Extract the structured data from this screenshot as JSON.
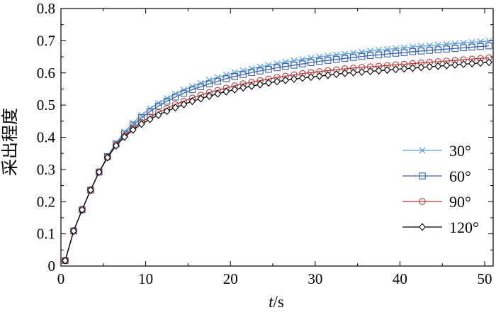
{
  "chart_data": {
    "type": "line",
    "title": "",
    "xlabel_italic": "t",
    "xlabel_unit": "/s",
    "ylabel": "采出程度",
    "xlim": [
      0,
      51
    ],
    "ylim": [
      0,
      0.8
    ],
    "xticks": [
      "0",
      "10",
      "20",
      "30",
      "40",
      "50"
    ],
    "yticks": [
      "0",
      "0.1",
      "0.2",
      "0.3",
      "0.4",
      "0.5",
      "0.6",
      "0.7",
      "0.8"
    ],
    "grid": false,
    "legend_position": "bottom-right",
    "x": [
      0.5,
      1.5,
      2.5,
      3.5,
      4.5,
      5.5,
      6.5,
      7.5,
      8.5,
      9.5,
      10.5,
      11.5,
      12.5,
      13.5,
      14.5,
      15.5,
      16.5,
      17.5,
      18.5,
      19.5,
      20.5,
      21.5,
      22.5,
      23.5,
      24.5,
      25.5,
      26.5,
      27.5,
      28.5,
      29.5,
      30.5,
      31.5,
      32.5,
      33.5,
      34.5,
      35.5,
      36.5,
      37.5,
      38.5,
      39.5,
      40.5,
      41.5,
      42.5,
      43.5,
      44.5,
      45.5,
      46.5,
      47.5,
      48.5,
      49.5,
      50.5
    ],
    "series": [
      {
        "name": "30°",
        "marker": "x",
        "color": "#5aa0d8",
        "values": [
          0.017,
          0.109,
          0.175,
          0.236,
          0.292,
          0.342,
          0.382,
          0.417,
          0.445,
          0.469,
          0.489,
          0.506,
          0.521,
          0.535,
          0.547,
          0.558,
          0.568,
          0.578,
          0.586,
          0.594,
          0.601,
          0.607,
          0.613,
          0.619,
          0.624,
          0.629,
          0.634,
          0.638,
          0.642,
          0.646,
          0.65,
          0.653,
          0.656,
          0.659,
          0.662,
          0.665,
          0.668,
          0.671,
          0.673,
          0.676,
          0.678,
          0.681,
          0.683,
          0.685,
          0.687,
          0.689,
          0.691,
          0.693,
          0.695,
          0.697,
          0.699
        ]
      },
      {
        "name": "60°",
        "marker": "square",
        "color": "#3a62a8",
        "values": [
          0.017,
          0.109,
          0.175,
          0.236,
          0.292,
          0.34,
          0.379,
          0.411,
          0.438,
          0.461,
          0.48,
          0.497,
          0.512,
          0.525,
          0.537,
          0.548,
          0.557,
          0.566,
          0.574,
          0.582,
          0.589,
          0.595,
          0.601,
          0.606,
          0.611,
          0.616,
          0.62,
          0.624,
          0.628,
          0.632,
          0.636,
          0.639,
          0.642,
          0.645,
          0.648,
          0.651,
          0.654,
          0.656,
          0.659,
          0.661,
          0.663,
          0.666,
          0.668,
          0.67,
          0.672,
          0.674,
          0.676,
          0.678,
          0.68,
          0.682,
          0.684
        ]
      },
      {
        "name": "90°",
        "marker": "circle",
        "color": "#b03a3a",
        "values": [
          0.017,
          0.109,
          0.175,
          0.236,
          0.292,
          0.338,
          0.376,
          0.405,
          0.428,
          0.447,
          0.463,
          0.477,
          0.49,
          0.502,
          0.512,
          0.522,
          0.531,
          0.539,
          0.546,
          0.553,
          0.56,
          0.566,
          0.571,
          0.576,
          0.581,
          0.586,
          0.59,
          0.594,
          0.598,
          0.601,
          0.604,
          0.607,
          0.61,
          0.613,
          0.615,
          0.617,
          0.619,
          0.621,
          0.623,
          0.625,
          0.627,
          0.629,
          0.631,
          0.633,
          0.635,
          0.637,
          0.639,
          0.641,
          0.643,
          0.645,
          0.647
        ]
      },
      {
        "name": "120°",
        "marker": "diamond",
        "color": "#000000",
        "values": [
          0.017,
          0.109,
          0.175,
          0.236,
          0.292,
          0.337,
          0.374,
          0.401,
          0.423,
          0.441,
          0.456,
          0.469,
          0.481,
          0.492,
          0.502,
          0.512,
          0.52,
          0.528,
          0.535,
          0.542,
          0.548,
          0.554,
          0.559,
          0.564,
          0.569,
          0.573,
          0.577,
          0.581,
          0.584,
          0.587,
          0.59,
          0.593,
          0.596,
          0.599,
          0.601,
          0.603,
          0.605,
          0.607,
          0.609,
          0.611,
          0.613,
          0.615,
          0.617,
          0.619,
          0.621,
          0.623,
          0.625,
          0.627,
          0.629,
          0.631,
          0.633
        ]
      }
    ]
  }
}
